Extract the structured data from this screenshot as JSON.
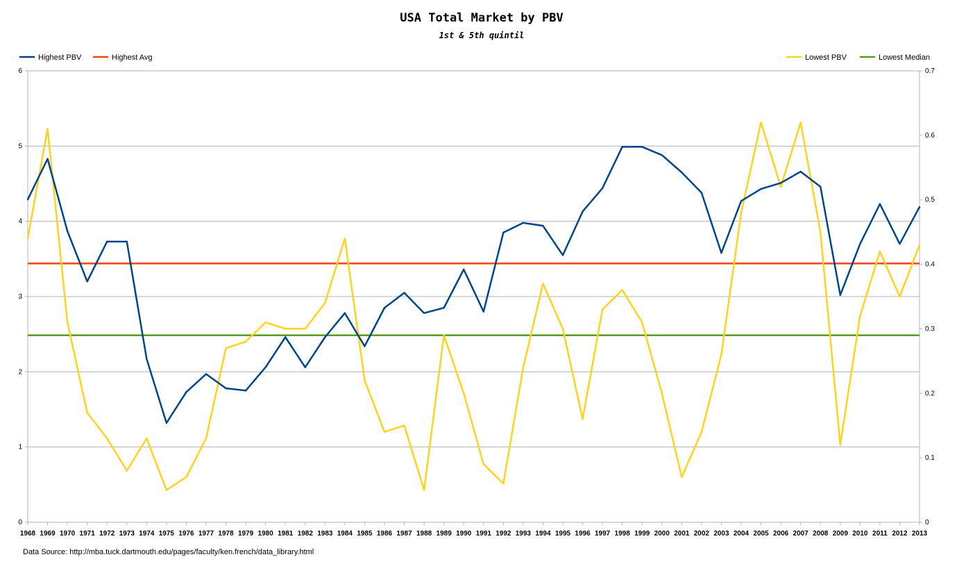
{
  "chart_data": {
    "type": "line",
    "title": "USA Total Market by PBV",
    "subtitle": "1st & 5th quintil",
    "source_note": "Data Source: http://mba.tuck.dartmouth.edu/pages/faculty/ken.french/data_library.html",
    "x": [
      "1968",
      "1969",
      "1970",
      "1971",
      "1972",
      "1973",
      "1974",
      "1975",
      "1976",
      "1977",
      "1978",
      "1979",
      "1980",
      "1981",
      "1982",
      "1983",
      "1984",
      "1985",
      "1986",
      "1987",
      "1988",
      "1989",
      "1990",
      "1991",
      "1992",
      "1993",
      "1994",
      "1995",
      "1996",
      "1997",
      "1998",
      "1999",
      "2000",
      "2001",
      "2002",
      "2003",
      "2004",
      "2005",
      "2006",
      "2007",
      "2008",
      "2009",
      "2010",
      "2011",
      "2012",
      "2013"
    ],
    "y_left": {
      "ylim": [
        0,
        6
      ],
      "ticks": [
        "0",
        "1",
        "2",
        "3",
        "4",
        "5",
        "6"
      ]
    },
    "y_right": {
      "ylim": [
        0,
        0.7
      ],
      "ticks": [
        "0",
        "0.1",
        "0.2",
        "0.3",
        "0.4",
        "0.5",
        "0.6",
        "0.7"
      ]
    },
    "grid": true,
    "legend_left": [
      "Highest PBV",
      "Highest Avg"
    ],
    "legend_right": [
      "Lowest PBV",
      "Lowest Median"
    ],
    "series": [
      {
        "name": "Highest PBV",
        "axis": "left",
        "color": "#004586",
        "values": [
          4.29,
          4.83,
          3.87,
          3.2,
          3.73,
          3.73,
          2.17,
          1.32,
          1.73,
          1.97,
          1.78,
          1.75,
          2.06,
          2.46,
          2.06,
          2.46,
          2.78,
          2.34,
          2.85,
          3.05,
          2.78,
          2.85,
          3.36,
          2.8,
          3.85,
          3.98,
          3.94,
          3.55,
          4.13,
          4.44,
          4.99,
          4.99,
          4.88,
          4.65,
          4.38,
          3.58,
          4.27,
          4.43,
          4.51,
          4.66,
          4.46,
          3.02,
          3.7,
          4.23,
          3.7,
          4.19
        ]
      },
      {
        "name": "Highest Avg",
        "axis": "left",
        "color": "#ff420e",
        "constant": 3.44
      },
      {
        "name": "Lowest PBV",
        "axis": "right",
        "color": "#ffd320",
        "values": [
          0.44,
          0.61,
          0.31,
          0.17,
          0.13,
          0.08,
          0.13,
          0.05,
          0.07,
          0.13,
          0.27,
          0.28,
          0.31,
          0.3,
          0.3,
          0.34,
          0.44,
          0.22,
          0.14,
          0.15,
          0.05,
          0.29,
          0.2,
          0.09,
          0.06,
          0.24,
          0.37,
          0.3,
          0.16,
          0.33,
          0.36,
          0.31,
          0.2,
          0.07,
          0.14,
          0.26,
          0.48,
          0.62,
          0.52,
          0.62,
          0.45,
          0.12,
          0.32,
          0.42,
          0.35,
          0.43
        ]
      },
      {
        "name": "Lowest Median",
        "axis": "right",
        "color": "#579d1c",
        "constant": 0.29
      }
    ]
  }
}
